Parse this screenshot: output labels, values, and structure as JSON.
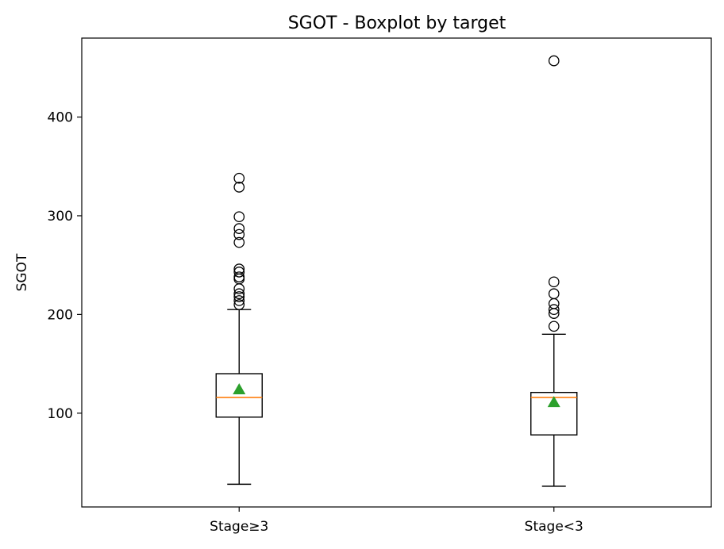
{
  "chart_data": {
    "type": "boxplot",
    "title": "SGOT - Boxplot by target",
    "xlabel": "",
    "ylabel": "SGOT",
    "ylim": [
      5,
      480
    ],
    "yticks": [
      100,
      200,
      300,
      400
    ],
    "grid": false,
    "categories": [
      "Stage≥3",
      "Stage<3"
    ],
    "boxes": [
      {
        "category": "Stage≥3",
        "whisker_low": 28,
        "q1": 96,
        "median": 116,
        "q3": 140,
        "whisker_high": 205,
        "mean": 124,
        "outliers": [
          338,
          329,
          299,
          287,
          281,
          273,
          246,
          243,
          238,
          236,
          226,
          221,
          218,
          214,
          210
        ]
      },
      {
        "category": "Stage<3",
        "whisker_low": 26,
        "q1": 78,
        "median": 116,
        "q3": 121,
        "whisker_high": 180,
        "mean": 111,
        "outliers": [
          457,
          233,
          221,
          211,
          205,
          201,
          188
        ]
      }
    ],
    "colors": {
      "box": "#000000",
      "median": "#ff7f0e",
      "mean": "#2ca02c"
    }
  }
}
